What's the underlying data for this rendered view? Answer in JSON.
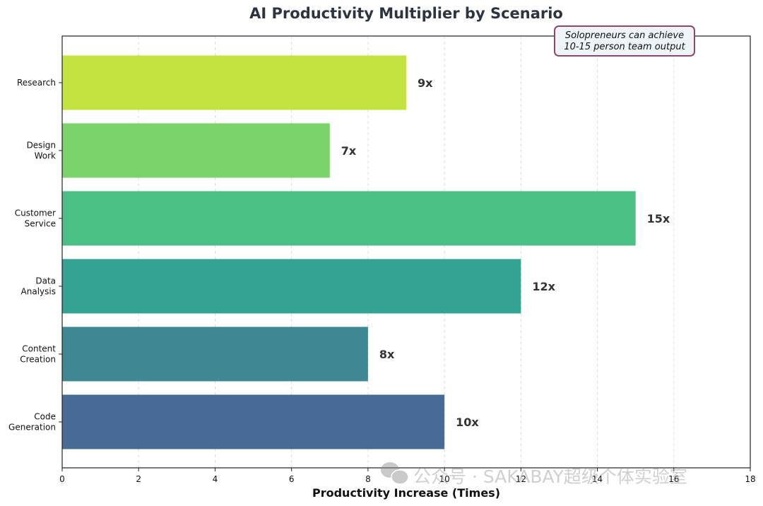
{
  "chart_data": {
    "type": "bar",
    "orientation": "horizontal",
    "title": "AI Productivity Multiplier by Scenario",
    "xlabel": "Productivity Increase (Times)",
    "ylabel": "",
    "xlim": [
      0,
      18
    ],
    "xticks": [
      0,
      2,
      4,
      6,
      8,
      10,
      12,
      14,
      16,
      18
    ],
    "grid": "vertical dashed",
    "categories": [
      "Research",
      "Design\nWork",
      "Customer\nService",
      "Data\nAnalysis",
      "Content\nCreation",
      "Code\nGeneration"
    ],
    "values": [
      9,
      7,
      15,
      12,
      8,
      10
    ],
    "data_labels": [
      "9x",
      "7x",
      "15x",
      "12x",
      "8x",
      "10x"
    ],
    "colors": [
      "#c5e33f",
      "#7cd36c",
      "#4bbf86",
      "#34a394",
      "#3f8893",
      "#486b95"
    ],
    "annotation": {
      "lines": [
        "Solopreneurs can achieve",
        "10-15 person team output"
      ],
      "border_color": "#8b4a6b",
      "fill_color": "#eef4f7"
    }
  },
  "watermark": {
    "text": "公众号 · SAKABAY超级个体实验室",
    "icon": "wechat-icon"
  }
}
